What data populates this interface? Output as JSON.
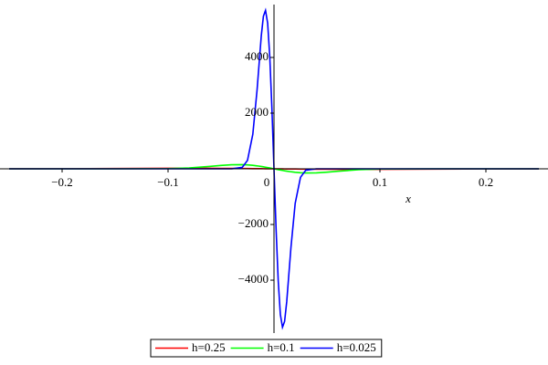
{
  "chart_data": {
    "type": "line",
    "x_label": "x",
    "x": [
      -0.25,
      -0.2,
      -0.15,
      -0.1,
      -0.08,
      -0.06,
      -0.05,
      -0.04,
      -0.03,
      -0.025,
      -0.02,
      -0.016,
      -0.012,
      -0.01,
      -0.008,
      -0.006,
      -0.004,
      -0.002,
      0,
      0.002,
      0.004,
      0.006,
      0.008,
      0.01,
      0.012,
      0.016,
      0.02,
      0.025,
      0.03,
      0.04,
      0.05,
      0.06,
      0.08,
      0.1,
      0.15,
      0.2,
      0.25
    ],
    "series": [
      {
        "name": "h=0.25",
        "color": "#ff0000",
        "values": [
          1.1,
          4.4,
          11.7,
          19.3,
          20,
          18.3,
          16.5,
          14.1,
          11.1,
          9.5,
          7.7,
          6.2,
          4.7,
          3.9,
          3.2,
          2.4,
          1.6,
          0.8,
          0,
          -0.8,
          -1.6,
          -2.4,
          -3.2,
          -3.9,
          -4.7,
          -6.2,
          -7.7,
          -9.5,
          -11.1,
          -14.1,
          -16.5,
          -18.3,
          -20,
          -19.3,
          -11.7,
          -4.4,
          -1.1
        ]
      },
      {
        "name": "h=0.1",
        "color": "#00ff00",
        "values": [
          0,
          0,
          0,
          8.2,
          33,
          88,
          120,
          144,
          148,
          140,
          124,
          106,
          83,
          71,
          58,
          44,
          30,
          15,
          0,
          -15,
          -30,
          -44,
          -58,
          -71,
          -83,
          -106,
          -124,
          -140,
          -148,
          -144,
          -120,
          -88,
          -33,
          -8.2,
          0,
          0,
          0
        ]
      },
      {
        "name": "h=0.025",
        "color": "#0000ff",
        "values": [
          0,
          0,
          0,
          0,
          0,
          0,
          0,
          0,
          50,
          305,
          1240,
          2824,
          4780,
          5481,
          5692,
          5234,
          4033,
          2199,
          0,
          -2199,
          -4033,
          -5234,
          -5692,
          -5481,
          -4780,
          -2824,
          -1240,
          -305,
          -50,
          0,
          0,
          0,
          0,
          0,
          0,
          0,
          0
        ]
      }
    ],
    "xlim": [
      -0.25,
      0.25
    ],
    "ylim": [
      -5900,
      5900
    ],
    "xticks": [
      {
        "value": -0.2,
        "label": "−0.2"
      },
      {
        "value": -0.1,
        "label": "−0.1"
      },
      0,
      0.1,
      0.2
    ],
    "yticks": [
      {
        "value": -4000,
        "label": "−4000"
      },
      {
        "value": -2000,
        "label": "−2000"
      },
      2000,
      4000
    ],
    "legend": "bottom"
  }
}
